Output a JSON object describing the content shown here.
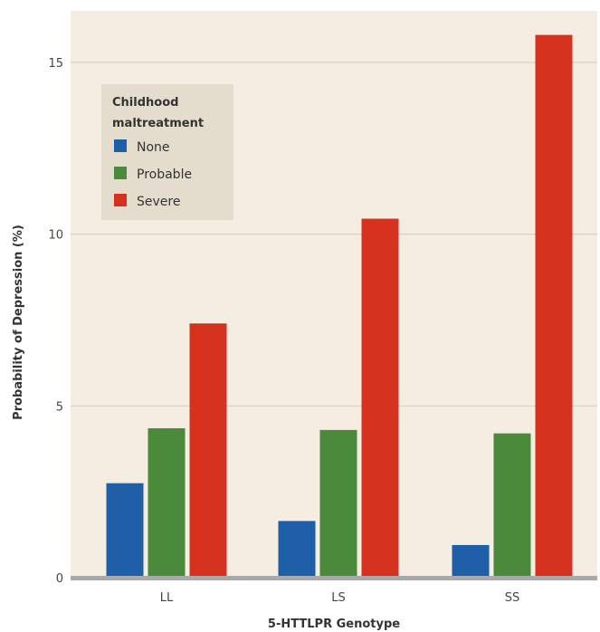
{
  "chart_data": {
    "type": "bar",
    "categories": [
      "LL",
      "LS",
      "SS"
    ],
    "series": [
      {
        "name": "None",
        "color": "#1f5fa8",
        "values": [
          2.75,
          1.65,
          0.95
        ]
      },
      {
        "name": "Probable",
        "color": "#4a8a3a",
        "values": [
          4.35,
          4.3,
          4.2
        ]
      },
      {
        "name": "Severe",
        "color": "#d4321f",
        "values": [
          7.4,
          10.45,
          15.8
        ]
      }
    ],
    "title": "",
    "xlabel": "5-HTTLPR Genotype",
    "ylabel": "Probability of Depression (%)",
    "ylim": [
      0,
      16.5
    ],
    "yticks": [
      0,
      5,
      10,
      15
    ],
    "grid": true,
    "legend": {
      "title_lines": [
        "Childhood",
        "maltreatment"
      ],
      "placement": "top-left"
    },
    "colors": {
      "plot_background": "#f5ede2",
      "gridline": "#d8cfc2",
      "baseline": "#a9a9a9",
      "legend_background": "#e4dccd"
    }
  }
}
